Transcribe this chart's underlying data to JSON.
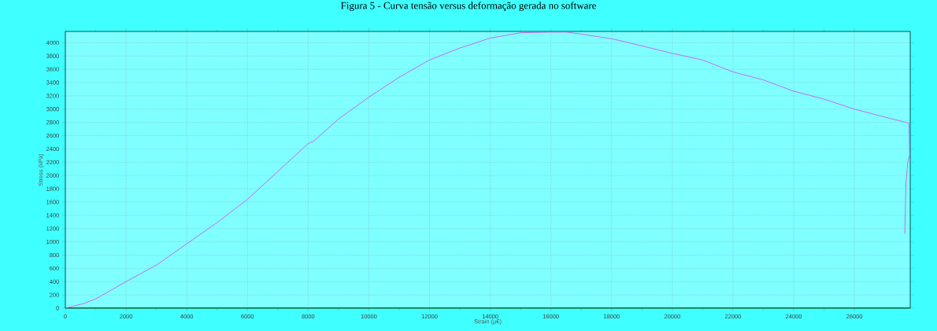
{
  "chart_data": {
    "type": "line",
    "title": "Figura 5 - Curva tensão versus deformação gerada no software",
    "xlabel": "Strain (µ€)",
    "ylabel": "Stress (kPa)",
    "x": [
      0,
      600,
      1000,
      2000,
      3000,
      4000,
      5000,
      6000,
      7000,
      8000,
      8190,
      9000,
      10000,
      11000,
      12000,
      13000,
      14000,
      15000,
      16000,
      16500,
      17000,
      18000,
      18570,
      20000,
      21000,
      22000,
      23000,
      24000,
      25000,
      26000,
      27000,
      27700,
      27800,
      27820,
      27760,
      27700,
      27660
    ],
    "series": [
      {
        "color": "#dd44ee",
        "values": [
          0,
          70,
          140,
          400,
          650,
          970,
          1290,
          1640,
          2060,
          2480,
          2520,
          2850,
          3180,
          3480,
          3740,
          3920,
          4070,
          4150,
          4160,
          4160,
          4130,
          4060,
          4000,
          3840,
          3740,
          3560,
          3440,
          3270,
          3150,
          3000,
          2880,
          2800,
          2780,
          2310,
          2200,
          1880,
          1120
        ]
      }
    ],
    "xlim": [
      0,
      27840
    ],
    "ylim": [
      0,
      4170
    ],
    "xticks": [
      0,
      2000,
      4000,
      6000,
      8000,
      10000,
      12000,
      14000,
      16000,
      18000,
      20000,
      22000,
      24000,
      26000
    ],
    "yticks": [
      0,
      200,
      400,
      600,
      800,
      1000,
      1200,
      1400,
      1600,
      1800,
      2000,
      2200,
      2400,
      2600,
      2800,
      3000,
      3200,
      3400,
      3600,
      3800,
      4000
    ],
    "grid": true,
    "legend": false,
    "marker": "none",
    "line_style": "solid"
  }
}
